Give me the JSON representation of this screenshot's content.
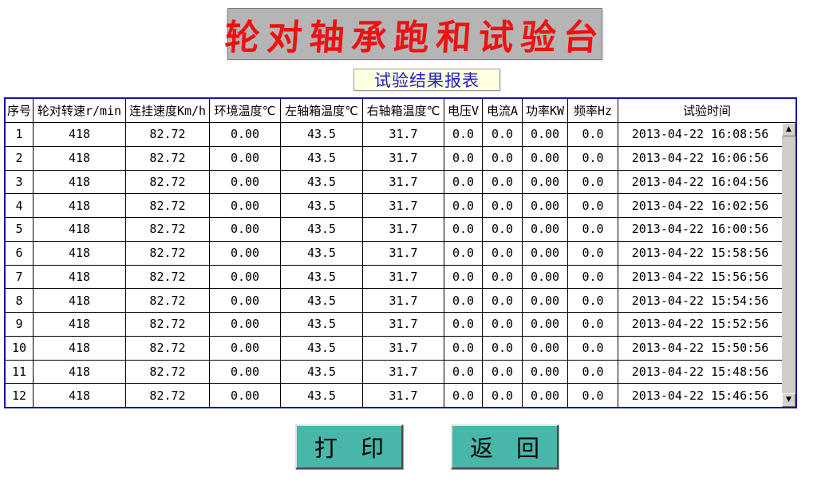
{
  "banner": {
    "title": "轮对轴承跑和试验台"
  },
  "report_label": "试验结果报表",
  "table": {
    "headers": [
      "序号",
      "轮对转速r/min",
      "连挂速度Km/h",
      "环境温度℃",
      "左轴箱温度℃",
      "右轴箱温度℃",
      "电压V",
      "电流A",
      "功率KW",
      "频率Hz",
      "试验时间"
    ],
    "rows": [
      [
        "1",
        "418",
        "82.72",
        "0.00",
        "43.5",
        "31.7",
        "0.0",
        "0.0",
        "0.00",
        "0.0",
        "2013-04-22 16:08:56"
      ],
      [
        "2",
        "418",
        "82.72",
        "0.00",
        "43.5",
        "31.7",
        "0.0",
        "0.0",
        "0.00",
        "0.0",
        "2013-04-22 16:06:56"
      ],
      [
        "3",
        "418",
        "82.72",
        "0.00",
        "43.5",
        "31.7",
        "0.0",
        "0.0",
        "0.00",
        "0.0",
        "2013-04-22 16:04:56"
      ],
      [
        "4",
        "418",
        "82.72",
        "0.00",
        "43.5",
        "31.7",
        "0.0",
        "0.0",
        "0.00",
        "0.0",
        "2013-04-22 16:02:56"
      ],
      [
        "5",
        "418",
        "82.72",
        "0.00",
        "43.5",
        "31.7",
        "0.0",
        "0.0",
        "0.00",
        "0.0",
        "2013-04-22 16:00:56"
      ],
      [
        "6",
        "418",
        "82.72",
        "0.00",
        "43.5",
        "31.7",
        "0.0",
        "0.0",
        "0.00",
        "0.0",
        "2013-04-22 15:58:56"
      ],
      [
        "7",
        "418",
        "82.72",
        "0.00",
        "43.5",
        "31.7",
        "0.0",
        "0.0",
        "0.00",
        "0.0",
        "2013-04-22 15:56:56"
      ],
      [
        "8",
        "418",
        "82.72",
        "0.00",
        "43.5",
        "31.7",
        "0.0",
        "0.0",
        "0.00",
        "0.0",
        "2013-04-22 15:54:56"
      ],
      [
        "9",
        "418",
        "82.72",
        "0.00",
        "43.5",
        "31.7",
        "0.0",
        "0.0",
        "0.00",
        "0.0",
        "2013-04-22 15:52:56"
      ],
      [
        "10",
        "418",
        "82.72",
        "0.00",
        "43.5",
        "31.7",
        "0.0",
        "0.0",
        "0.00",
        "0.0",
        "2013-04-22 15:50:56"
      ],
      [
        "11",
        "418",
        "82.72",
        "0.00",
        "43.5",
        "31.7",
        "0.0",
        "0.0",
        "0.00",
        "0.0",
        "2013-04-22 15:48:56"
      ],
      [
        "12",
        "418",
        "82.72",
        "0.00",
        "43.5",
        "31.7",
        "0.0",
        "0.0",
        "0.00",
        "0.0",
        "2013-04-22 15:46:56"
      ]
    ]
  },
  "scrollbar": {
    "up_icon": "▲",
    "down_icon": "▼"
  },
  "buttons": {
    "print": "打　印",
    "back": "返　回"
  },
  "colors": {
    "title_red": "#ee1111",
    "banner_gray": "#b5b5b5",
    "label_blue": "#2020cc",
    "label_bg": "#ffffe1",
    "table_border_navy": "#1515a3",
    "cell_border": "#000000",
    "scrollbar_gray": "#d2cec6",
    "button_teal": "#48b6a8"
  }
}
